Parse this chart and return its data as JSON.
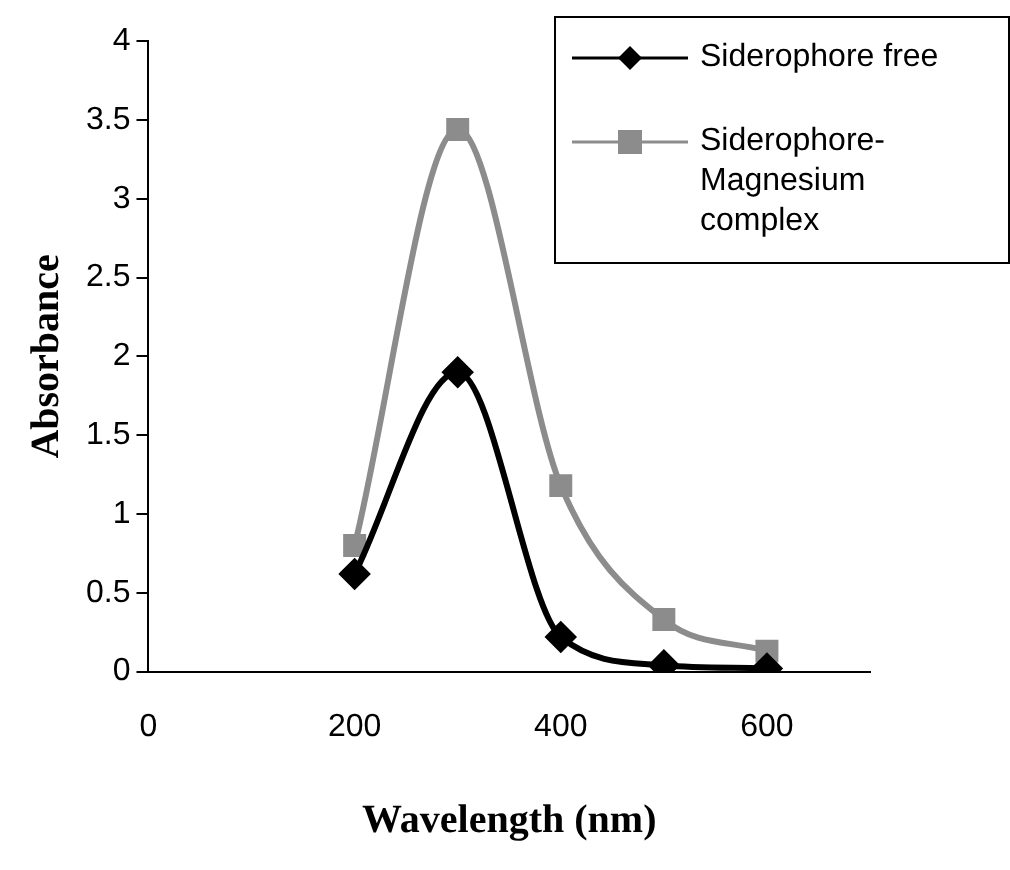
{
  "chart_data": {
    "type": "line",
    "xlabel": "Wavelength (nm)",
    "ylabel": "Absorbance",
    "xlim": [
      0,
      700
    ],
    "xticks": [
      0,
      200,
      400,
      600
    ],
    "ylim": [
      0,
      4
    ],
    "yticks": [
      0,
      0.5,
      1,
      1.5,
      2,
      2.5,
      3,
      3.5,
      4
    ],
    "grid": false,
    "legend": "top right",
    "series": [
      {
        "name": "Siderophore free",
        "color": "#000000",
        "marker": "diamond",
        "x": [
          200,
          300,
          400,
          500,
          600
        ],
        "values": [
          0.62,
          1.9,
          0.22,
          0.04,
          0.02
        ]
      },
      {
        "name": "Siderophore-Magnesium complex",
        "color": "#8c8c8c",
        "marker": "square",
        "x": [
          200,
          300,
          400,
          500,
          600
        ],
        "values": [
          0.8,
          3.44,
          1.18,
          0.33,
          0.13
        ]
      }
    ]
  }
}
